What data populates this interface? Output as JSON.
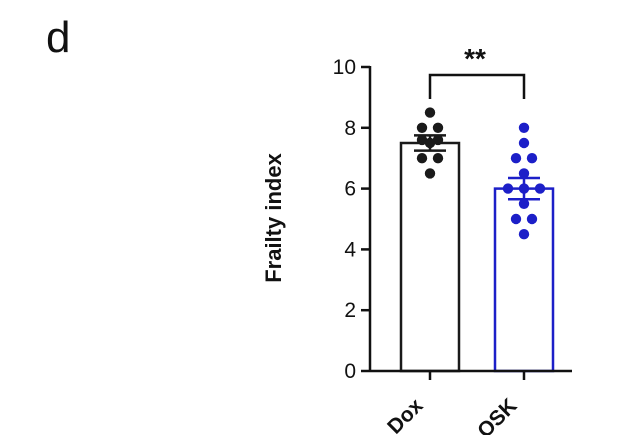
{
  "panel_label": "d",
  "colors": {
    "control": "#1a1a1a",
    "treated": "#1c1fc8",
    "text": "#111111"
  },
  "chart_data": {
    "type": "bar",
    "title": "",
    "xlabel": "",
    "ylabel": "Frailty index",
    "ylim": [
      0,
      10
    ],
    "yticks": [
      0,
      2,
      4,
      6,
      8,
      10
    ],
    "grid": false,
    "categories": [
      "Dox",
      "OSK"
    ],
    "category_label_note": "first label partially cut off at image edge",
    "bars": [
      {
        "category": "Dox",
        "mean": 7.5,
        "sem": 0.25,
        "color": "#1a1a1a",
        "points": [
          8.5,
          8.0,
          8.0,
          7.6,
          7.6,
          7.5,
          7.0,
          7.0,
          6.5
        ]
      },
      {
        "category": "OSK",
        "mean": 6.0,
        "sem": 0.35,
        "color": "#1c1fc8",
        "points": [
          8.0,
          7.5,
          7.0,
          7.0,
          6.5,
          6.0,
          6.0,
          6.0,
          5.5,
          5.0,
          5.0,
          4.5
        ]
      }
    ],
    "significance": {
      "between": [
        "Dox",
        "OSK"
      ],
      "label": "**"
    }
  }
}
